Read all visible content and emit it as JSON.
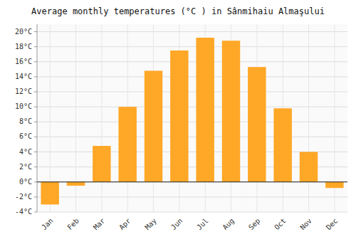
{
  "chart_data": {
    "type": "bar",
    "title": "Average monthly temperatures (°C ) in Sânmihaiu Almaşului",
    "categories": [
      "Jan",
      "Feb",
      "Mar",
      "Apr",
      "May",
      "Jun",
      "Jul",
      "Aug",
      "Sep",
      "Oct",
      "Nov",
      "Dec"
    ],
    "values": [
      -3.0,
      -0.5,
      4.8,
      10.0,
      14.8,
      17.5,
      19.2,
      18.8,
      15.3,
      9.8,
      4.0,
      -0.8
    ],
    "color": "#FFA726",
    "ylim": [
      -4,
      21
    ],
    "yticks": [
      {
        "value": -4,
        "label": "-4°C"
      },
      {
        "value": -2,
        "label": "-2°C"
      },
      {
        "value": 0,
        "label": "0°C"
      },
      {
        "value": 2,
        "label": "2°C"
      },
      {
        "value": 4,
        "label": "4°C"
      },
      {
        "value": 6,
        "label": "6°C"
      },
      {
        "value": 8,
        "label": "8°C"
      },
      {
        "value": 10,
        "label": "10°C"
      },
      {
        "value": 12,
        "label": "12°C"
      },
      {
        "value": 14,
        "label": "14°C"
      },
      {
        "value": 16,
        "label": "16°C"
      },
      {
        "value": 18,
        "label": "18°C"
      },
      {
        "value": 20,
        "label": "20°C"
      }
    ],
    "grid": true
  }
}
